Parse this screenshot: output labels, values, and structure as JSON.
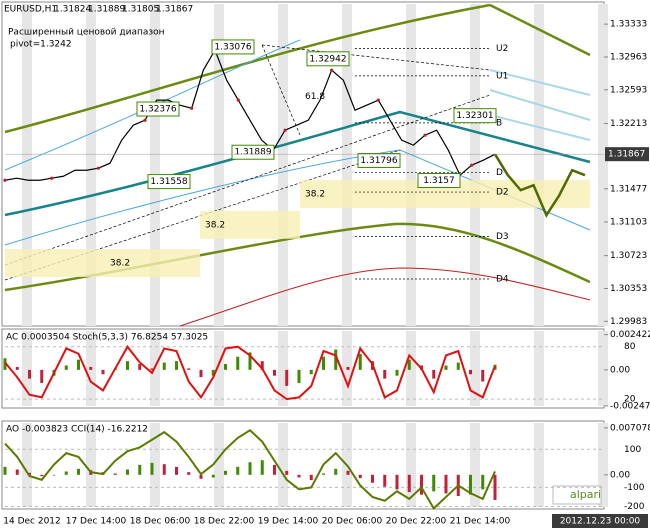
{
  "symbol": "EURUSD,H1",
  "ohlc": [
    1.31824,
    1.31889,
    1.31805,
    1.31867
  ],
  "notes": [
    "Расширенный ценовой диапазон",
    "pivot=1.3242"
  ],
  "logo": "alpari",
  "date_labels": [
    "14 Dec 2012",
    "17 Dec 14:00",
    "18 Dec 06:00",
    "18 Dec 22:00",
    "19 Dec 14:00",
    "20 Dec 06:00",
    "20 Dec 22:00",
    "21 Dec 14:00"
  ],
  "cursor_date": "2012.12.23 00:00",
  "chart_data": [
    {
      "type": "line",
      "ylim": [
        1.2993,
        1.3356
      ],
      "yticks": [
        1.33333,
        1.32963,
        1.32593,
        1.32213,
        1.31477,
        1.31103,
        1.30723,
        1.30353,
        1.29983
      ],
      "current_price": 1.31867,
      "color": "#000000",
      "values": [
        1.31573,
        1.31596,
        1.31573,
        1.31573,
        1.31596,
        1.31618,
        1.31686,
        1.31686,
        1.31709,
        1.31765,
        1.32025,
        1.32194,
        1.3225,
        1.32476,
        1.32476,
        1.32419,
        1.32385,
        1.32814,
        1.3304,
        1.32701,
        1.32476,
        1.3225,
        1.32025,
        1.31912,
        1.32137,
        1.32194,
        1.3225,
        1.32476,
        1.32814,
        1.32701,
        1.32363,
        1.32419,
        1.32476,
        1.3225,
        1.32025,
        1.31968,
        1.32081,
        1.32137,
        1.31912,
        1.3163,
        1.31743,
        1.31799,
        1.31867
      ],
      "forecast": {
        "color": "#4d6b00",
        "values": [
          1.31867,
          1.3163,
          1.31461,
          1.31517,
          1.31179,
          1.31404,
          1.31686,
          1.3163
        ]
      },
      "price_labels": [
        1.33076,
        1.32942,
        1.32376,
        1.32301,
        1.31889,
        1.31796,
        1.31558,
        1.3157
      ],
      "levels": [
        {
          "label": "U2",
          "value": 1.3306
        },
        {
          "label": "U1",
          "value": 1.3275
        },
        {
          "label": "B",
          "value": 1.3222
        },
        {
          "label": "D",
          "value": 1.3166
        },
        {
          "label": "D2",
          "value": 1.3144
        },
        {
          "label": "D3",
          "value": 1.3094
        },
        {
          "label": "D4",
          "value": 1.3046
        }
      ],
      "fib_labels": [
        {
          "label": "61.8",
          "value": 1.3252
        },
        {
          "label": "38.2",
          "value": 1.3142
        },
        {
          "label": "38.2",
          "value": 1.3107
        },
        {
          "label": "38.2",
          "value": 1.3064
        }
      ]
    },
    {
      "type": "oscillator",
      "title": "AC 0.0003504  Stoch(5,3,3) 76.8254 57.3025",
      "ylim": [
        -0.00255,
        0.00267
      ],
      "yticks": [
        {
          "value": 0.0024224,
          "label": "0.002422"
        },
        {
          "value": 0,
          "label": "0.00"
        },
        {
          "value": -0.002473,
          "label": "-0.002473"
        }
      ],
      "y2lim": [
        11,
        98
      ],
      "y2ticks": [
        80,
        20
      ],
      "up_color": "#3f8a00",
      "down_color": "#c0203a",
      "values": [
        0.0008,
        0.0002,
        -0.0006,
        -0.0009,
        -0.0004,
        0.0003,
        0.0007,
        0.0002,
        -0.0003,
        0.0001,
        0.0006,
        0.0004,
        0.0001,
        0.0005,
        0.0006,
        0.0001,
        -0.0005,
        -0.0004,
        0.0004,
        0.0009,
        0.0012,
        0.0006,
        -0.0004,
        -0.0011,
        -0.0009,
        -0.0003,
        0.0009,
        0.0014,
        0.0002,
        0.0011,
        0.0006,
        -0.0006,
        -0.0004,
        0.0007,
        0.0003,
        -0.0006,
        0.0003,
        0.0005,
        -0.0003,
        -0.0008,
        0.00035
      ],
      "line": {
        "axis": "y2",
        "color": "#e01010",
        "values": [
          62,
          45,
          25,
          22,
          50,
          78,
          72,
          40,
          30,
          55,
          80,
          62,
          50,
          78,
          75,
          40,
          22,
          45,
          78,
          80,
          70,
          55,
          30,
          20,
          22,
          35,
          75,
          70,
          35,
          78,
          60,
          22,
          30,
          70,
          55,
          28,
          70,
          75,
          30,
          22,
          58
        ]
      }
    },
    {
      "type": "oscillator",
      "title": "AO -0.003823  CCI(14) -16.2212",
      "ylim": [
        -0.00501,
        0.00782
      ],
      "yticks": [
        {
          "value": 0.007078,
          "label": "0.007078"
        },
        {
          "value": 0,
          "label": "0.00"
        }
      ],
      "y2lim": [
        -208,
        238
      ],
      "y2ticks": [
        100,
        -100,
        -200
      ],
      "up_color": "#3f8a00",
      "down_color": "#c0203a",
      "values": [
        0.0012,
        0.0008,
        0.0003,
        -0.0002,
        -0.0001,
        0.0005,
        0.0009,
        0.0007,
        0.0004,
        0.0002,
        0.0008,
        0.0015,
        0.0018,
        0.0016,
        0.0012,
        0.0004,
        -0.0006,
        -0.0004,
        0.0006,
        0.0012,
        0.0019,
        0.0022,
        0.0015,
        0.0006,
        -0.0004,
        -0.0008,
        0.0002,
        0.0009,
        0.0006,
        -0.0005,
        -0.0012,
        -0.0018,
        -0.0022,
        -0.0026,
        -0.003,
        -0.0025,
        -0.0028,
        -0.0032,
        -0.003,
        -0.0022,
        -0.0038
      ],
      "line": {
        "axis": "y2",
        "color": "#5a7a00",
        "values": [
          130,
          60,
          -40,
          -60,
          20,
          80,
          60,
          -20,
          -30,
          40,
          90,
          110,
          150,
          190,
          140,
          60,
          -30,
          20,
          100,
          160,
          200,
          140,
          40,
          -60,
          -110,
          -100,
          20,
          80,
          10,
          -90,
          -150,
          -170,
          -120,
          -160,
          -100,
          -210,
          -150,
          -90,
          -130,
          -160,
          -16.2212
        ]
      }
    }
  ]
}
